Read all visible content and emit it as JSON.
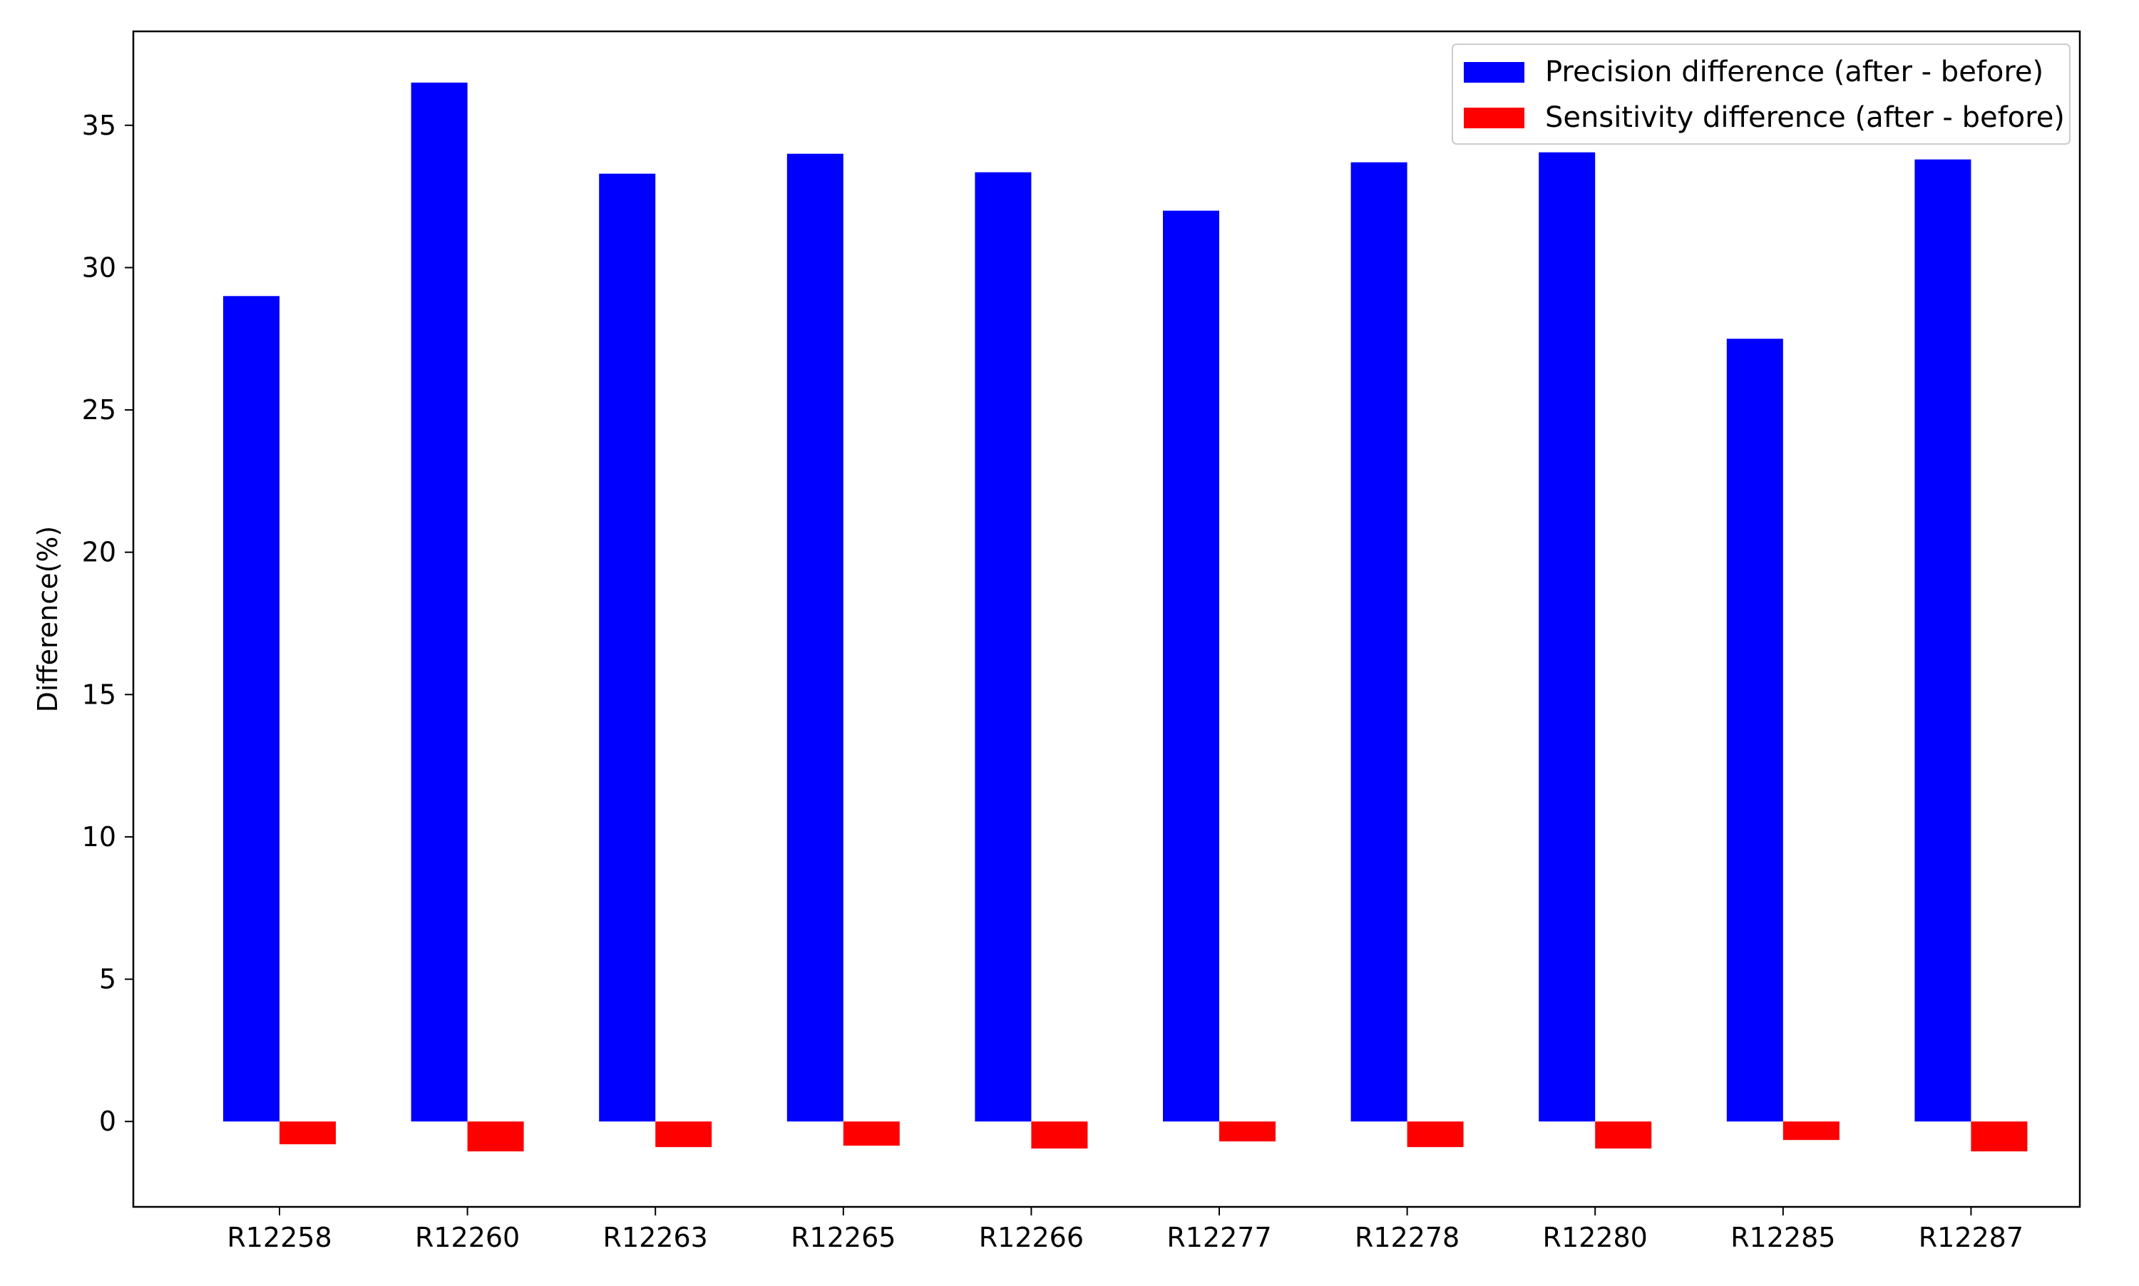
{
  "chart_data": {
    "type": "bar",
    "title": "",
    "xlabel": "",
    "ylabel": "Difference(%)",
    "ylim": [
      -3,
      38.3
    ],
    "yticks": [
      0,
      5,
      10,
      15,
      20,
      25,
      30,
      35
    ],
    "grid": false,
    "legend_position": "top-right",
    "categories": [
      "R12258",
      "R12260",
      "R12263",
      "R12265",
      "R12266",
      "R12277",
      "R12278",
      "R12280",
      "R12285",
      "R12287"
    ],
    "series": [
      {
        "name": "Precision difference (after - before)",
        "color": "#0000ff",
        "values": [
          29.0,
          36.5,
          33.3,
          34.0,
          33.35,
          32.0,
          33.7,
          34.05,
          27.5,
          33.8
        ]
      },
      {
        "name": "Sensitivity difference (after - before)",
        "color": "#ff0000",
        "values": [
          -0.8,
          -1.05,
          -0.9,
          -0.85,
          -0.95,
          -0.7,
          -0.9,
          -0.95,
          -0.65,
          -1.05
        ]
      }
    ]
  }
}
